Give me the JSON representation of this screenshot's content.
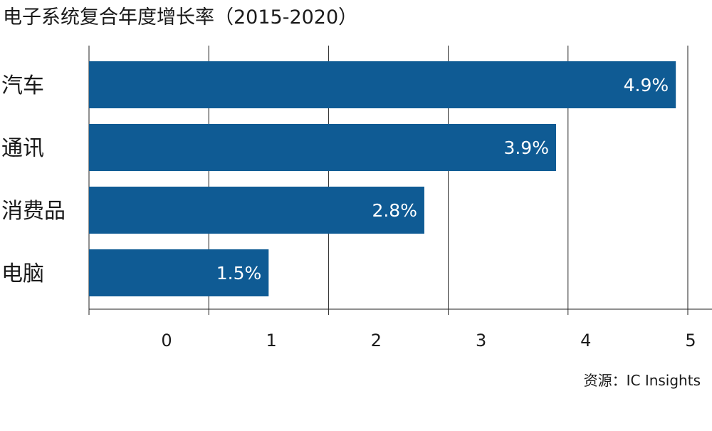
{
  "chart_data": {
    "type": "bar",
    "orientation": "horizontal",
    "title": "电子系统复合年度增长率（2015-2020）",
    "categories": [
      "汽车",
      "通讯",
      "消费品",
      "电脑"
    ],
    "values": [
      4.9,
      3.9,
      2.8,
      1.5
    ],
    "data_labels": [
      "4.9%",
      "3.9%",
      "2.8%",
      "1.5%"
    ],
    "xlim": [
      0,
      5
    ],
    "x_ticks": [
      "0",
      "1",
      "2",
      "3",
      "4",
      "5"
    ],
    "xlabel": "",
    "ylabel": "",
    "grid": true,
    "bar_color": "#0f5b94",
    "source": "资源：IC Insights"
  }
}
